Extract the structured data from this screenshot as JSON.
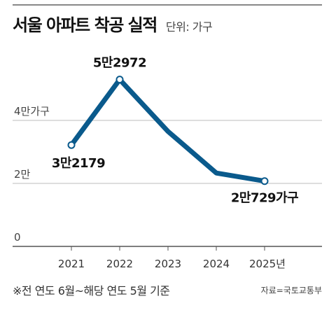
{
  "title": "서울 아파트 착공 실적",
  "unit": "단위: 가구",
  "footnote": "※전 연도 6월~해당 연도 5월 기준",
  "source": "자료=국토교통부",
  "chart_data": {
    "type": "line",
    "title": "서울 아파트 착공 실적",
    "x": [
      "2021",
      "2022",
      "2023",
      "2024",
      "2025년"
    ],
    "series": [
      {
        "values": [
          32179,
          52972,
          36500,
          23300,
          20729
        ]
      }
    ],
    "data_labels": [
      "3만2179",
      "5만2972",
      "",
      "",
      "2만729가구"
    ],
    "labeled_points": [
      0,
      1,
      4
    ],
    "y_ticks": [
      {
        "value": 0,
        "label": "0"
      },
      {
        "value": 20000,
        "label": "2만"
      },
      {
        "value": 40000,
        "label": "4만가구"
      }
    ],
    "ylim": [
      0,
      60000
    ],
    "grid": true,
    "colors": {
      "line": "#0a5a8c",
      "grid": "#bdbdbd",
      "axis": "#555555"
    }
  }
}
